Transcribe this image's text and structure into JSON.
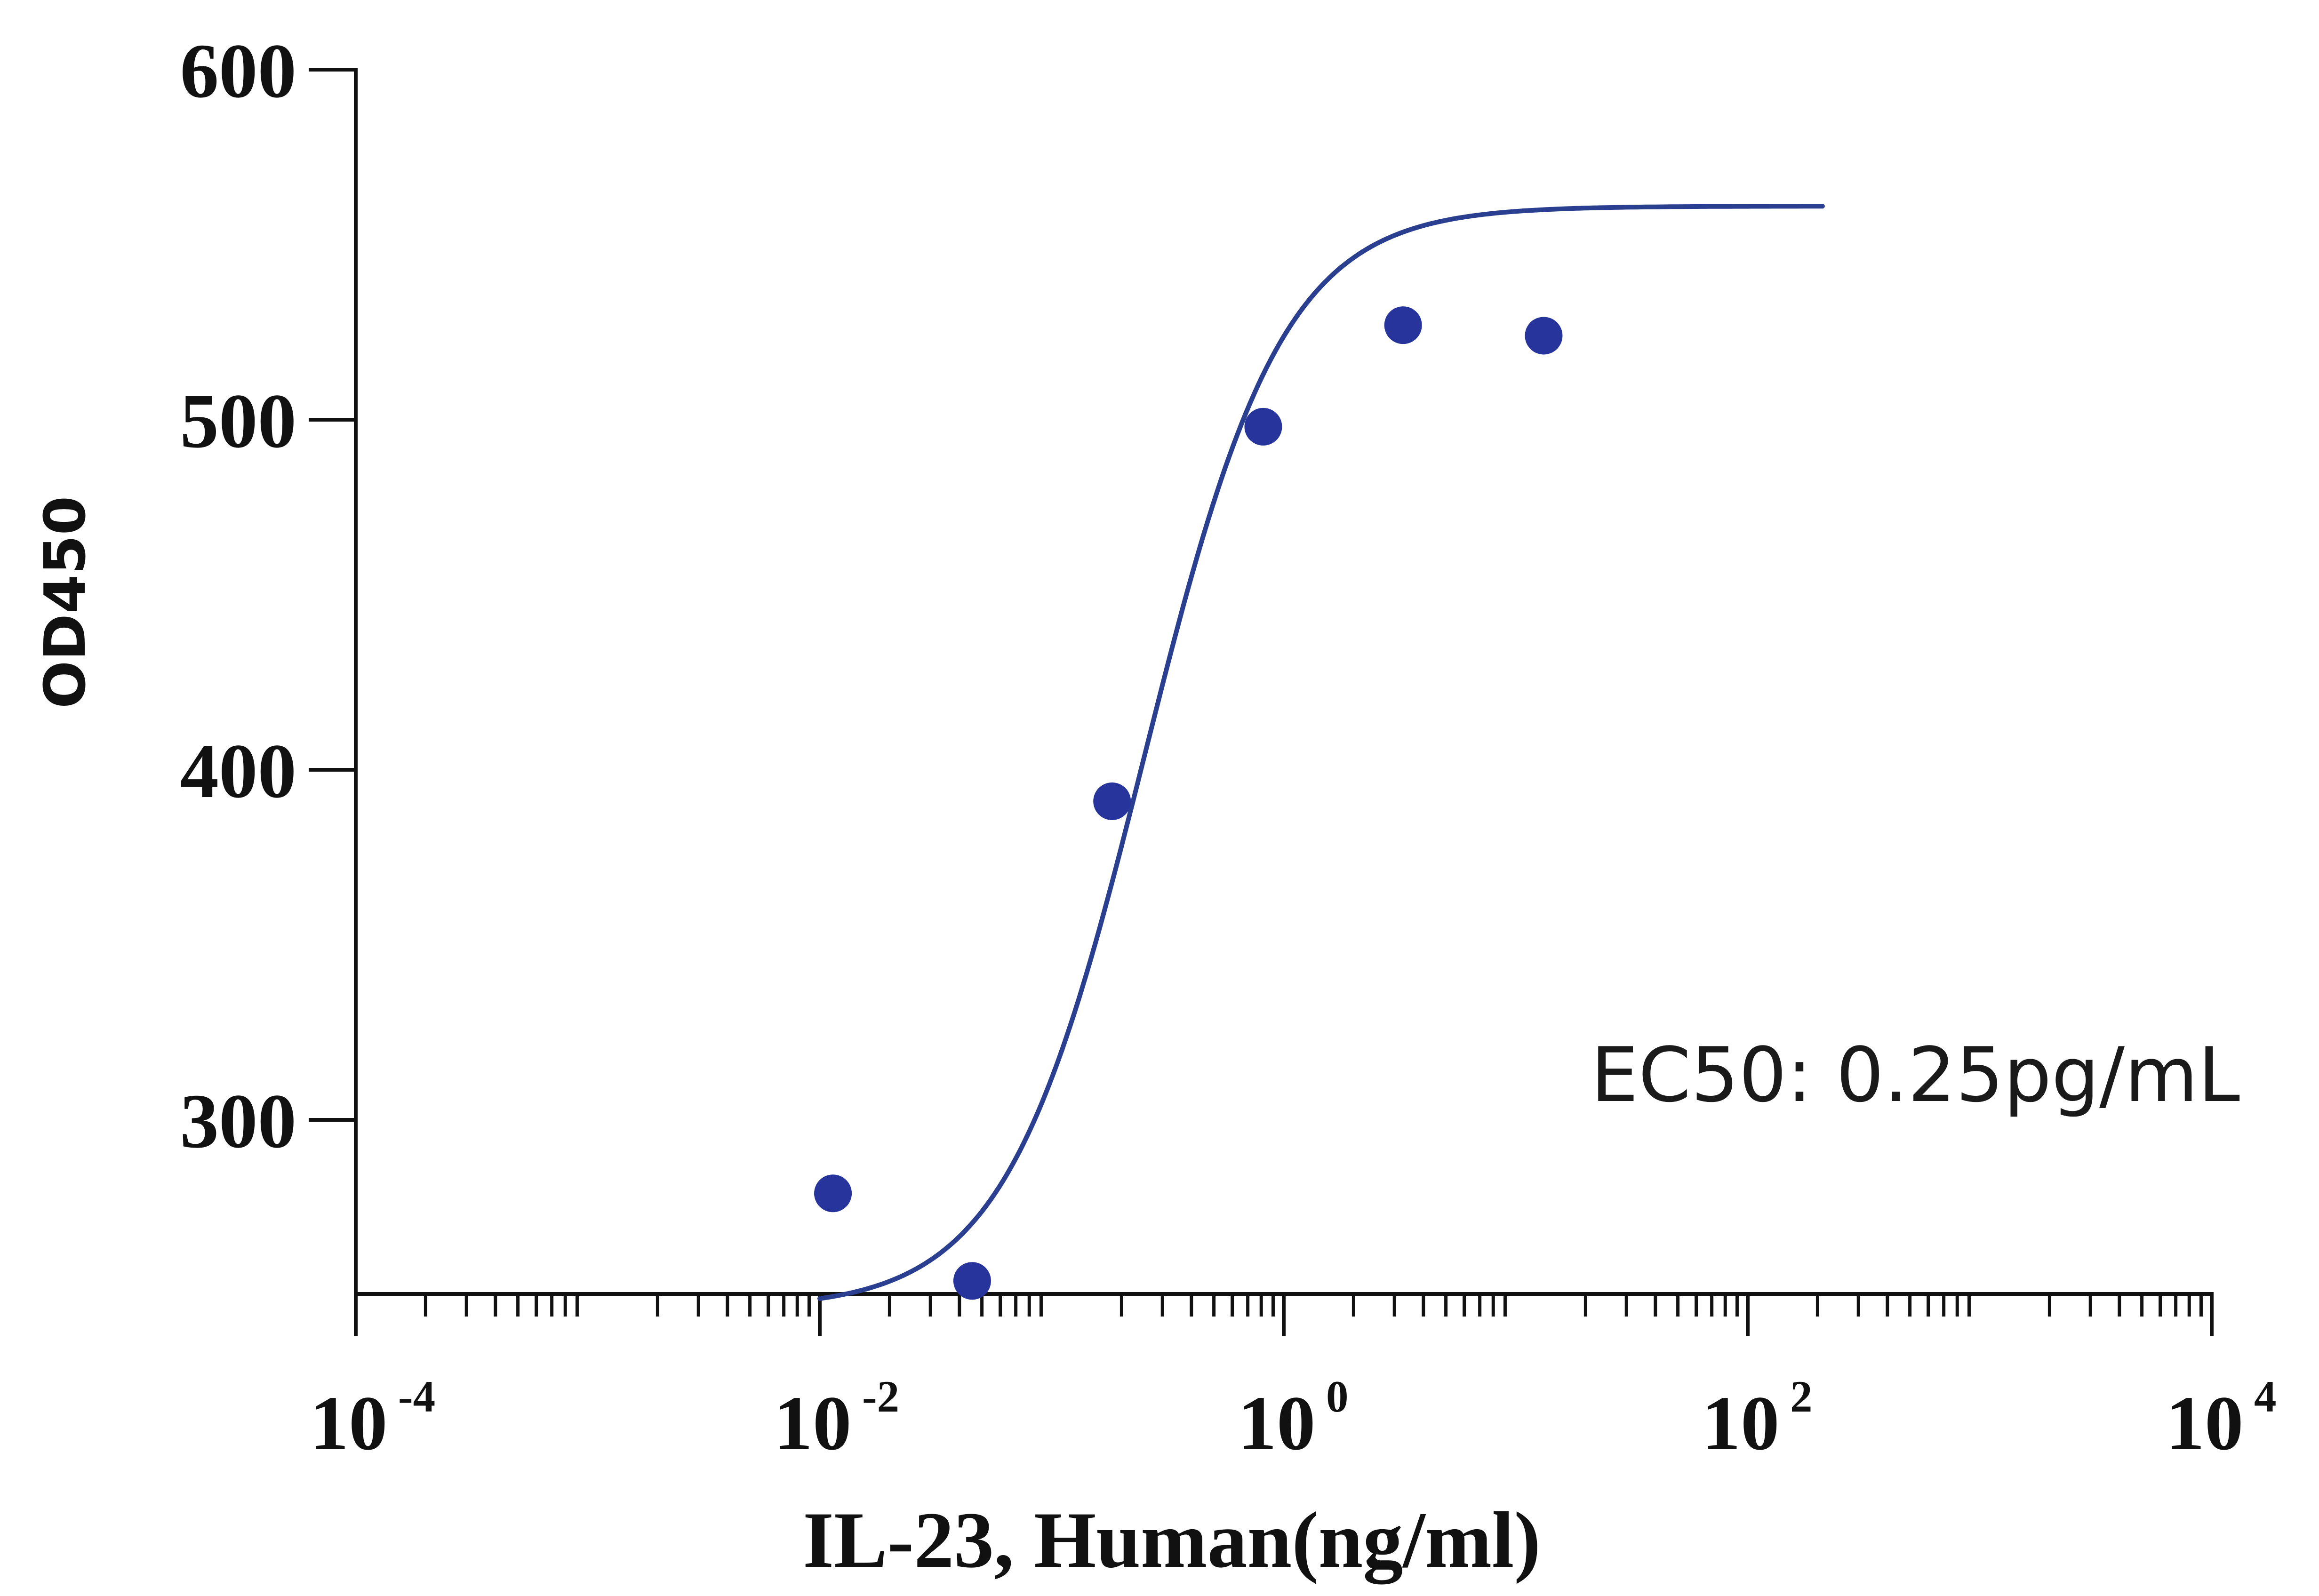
{
  "chart_data": {
    "type": "scatter",
    "title": "",
    "xlabel": "IL-23, Human(ng/ml)",
    "ylabel": "OD450",
    "x_scale": "log10",
    "xlim": [
      0.0001,
      10000
    ],
    "ylim": [
      250,
      600
    ],
    "x_ticks": [
      {
        "value": 0.0001,
        "base": "10",
        "exp": "-4"
      },
      {
        "value": 0.01,
        "base": "10",
        "exp": "-2"
      },
      {
        "value": 1,
        "base": "10",
        "exp": "0"
      },
      {
        "value": 100,
        "base": "10",
        "exp": "2"
      },
      {
        "value": 10000,
        "base": "10",
        "exp": "4"
      }
    ],
    "y_ticks": [
      {
        "value": 300,
        "label": "300"
      },
      {
        "value": 400,
        "label": "400"
      },
      {
        "value": 500,
        "label": "500"
      },
      {
        "value": 600,
        "label": "600"
      }
    ],
    "grid": false,
    "legend": "none",
    "series": [
      {
        "kind": "points",
        "color": "#26349b",
        "points": [
          {
            "x": 0.0114,
            "y": 279
          },
          {
            "x": 0.0454,
            "y": 254
          },
          {
            "x": 0.182,
            "y": 391
          },
          {
            "x": 0.816,
            "y": 498
          },
          {
            "x": 3.27,
            "y": 527
          },
          {
            "x": 13.2,
            "y": 524
          }
        ]
      },
      {
        "kind": "fit_curve",
        "color": "#2a3f8f",
        "model": "4PL",
        "bottom": 246,
        "top": 561,
        "ec50": 0.25,
        "hill": 1.45,
        "x_range": [
          0.01,
          210
        ]
      }
    ],
    "annotations": [
      {
        "text": "EC50:  0.25pg/mL",
        "position": "right-middle"
      }
    ]
  }
}
